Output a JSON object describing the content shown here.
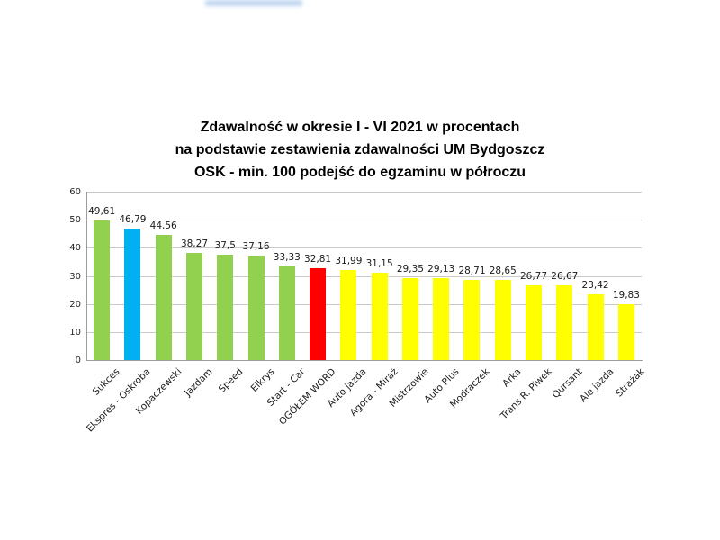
{
  "decorations": {
    "top_blur_color": "#8fb6e4"
  },
  "chart_data": {
    "type": "bar",
    "title": "Zdawalność w okresie I - VI 2021 w procentach na podstawie zestawienia zdawalności UM Bydgoszcz OSK - min. 100 podejść do egzaminu w półroczu",
    "title_lines": [
      "Zdawalność w okresie I - VI 2021 w procentach",
      "na podstawie zestawienia zdawalności UM Bydgoszcz",
      "OSK - min. 100 podejść do egzaminu w półroczu"
    ],
    "categories": [
      "Sukces",
      "Ekspres - Oskroba",
      "Kopaczewski",
      "Jazdam",
      "Speed",
      "Elkrys",
      "Start - Car",
      "OGÓŁEM WORD",
      "Auto jazda",
      "Agora - Miraż",
      "Mistrzowie",
      "Auto Plus",
      "Modraczek",
      "Arka",
      "Trans R. Piwek",
      "Qursant",
      "Ale jazda",
      "Strażak"
    ],
    "values": [
      49.61,
      46.79,
      44.56,
      38.27,
      37.5,
      37.16,
      33.33,
      32.81,
      31.99,
      31.15,
      29.35,
      29.13,
      28.71,
      28.65,
      26.77,
      26.67,
      23.42,
      19.83
    ],
    "value_labels": [
      "49,61",
      "46,79",
      "44,56",
      "38,27",
      "37,5",
      "37,16",
      "33,33",
      "32,81",
      "31,99",
      "31,15",
      "29,35",
      "29,13",
      "28,71",
      "28,65",
      "26,77",
      "26,67",
      "23,42",
      "19,83"
    ],
    "bar_colors": [
      "#92D050",
      "#00B0F0",
      "#92D050",
      "#92D050",
      "#92D050",
      "#92D050",
      "#92D050",
      "#FF0000",
      "#FFFF00",
      "#FFFF00",
      "#FFFF00",
      "#FFFF00",
      "#FFFF00",
      "#FFFF00",
      "#FFFF00",
      "#FFFF00",
      "#FFFF00",
      "#FFFF00"
    ],
    "palette": {
      "green": "#92D050",
      "blue": "#00B0F0",
      "red": "#FF0000",
      "yellow": "#FFFF00",
      "gridline": "#C9C9C9",
      "axis": "#9C9C9C"
    },
    "xlabel": "",
    "ylabel": "",
    "ylim": [
      0,
      60
    ],
    "yticks": [
      "0",
      "10",
      "20",
      "30",
      "40",
      "50",
      "60"
    ],
    "grid": true,
    "legend": "none"
  }
}
